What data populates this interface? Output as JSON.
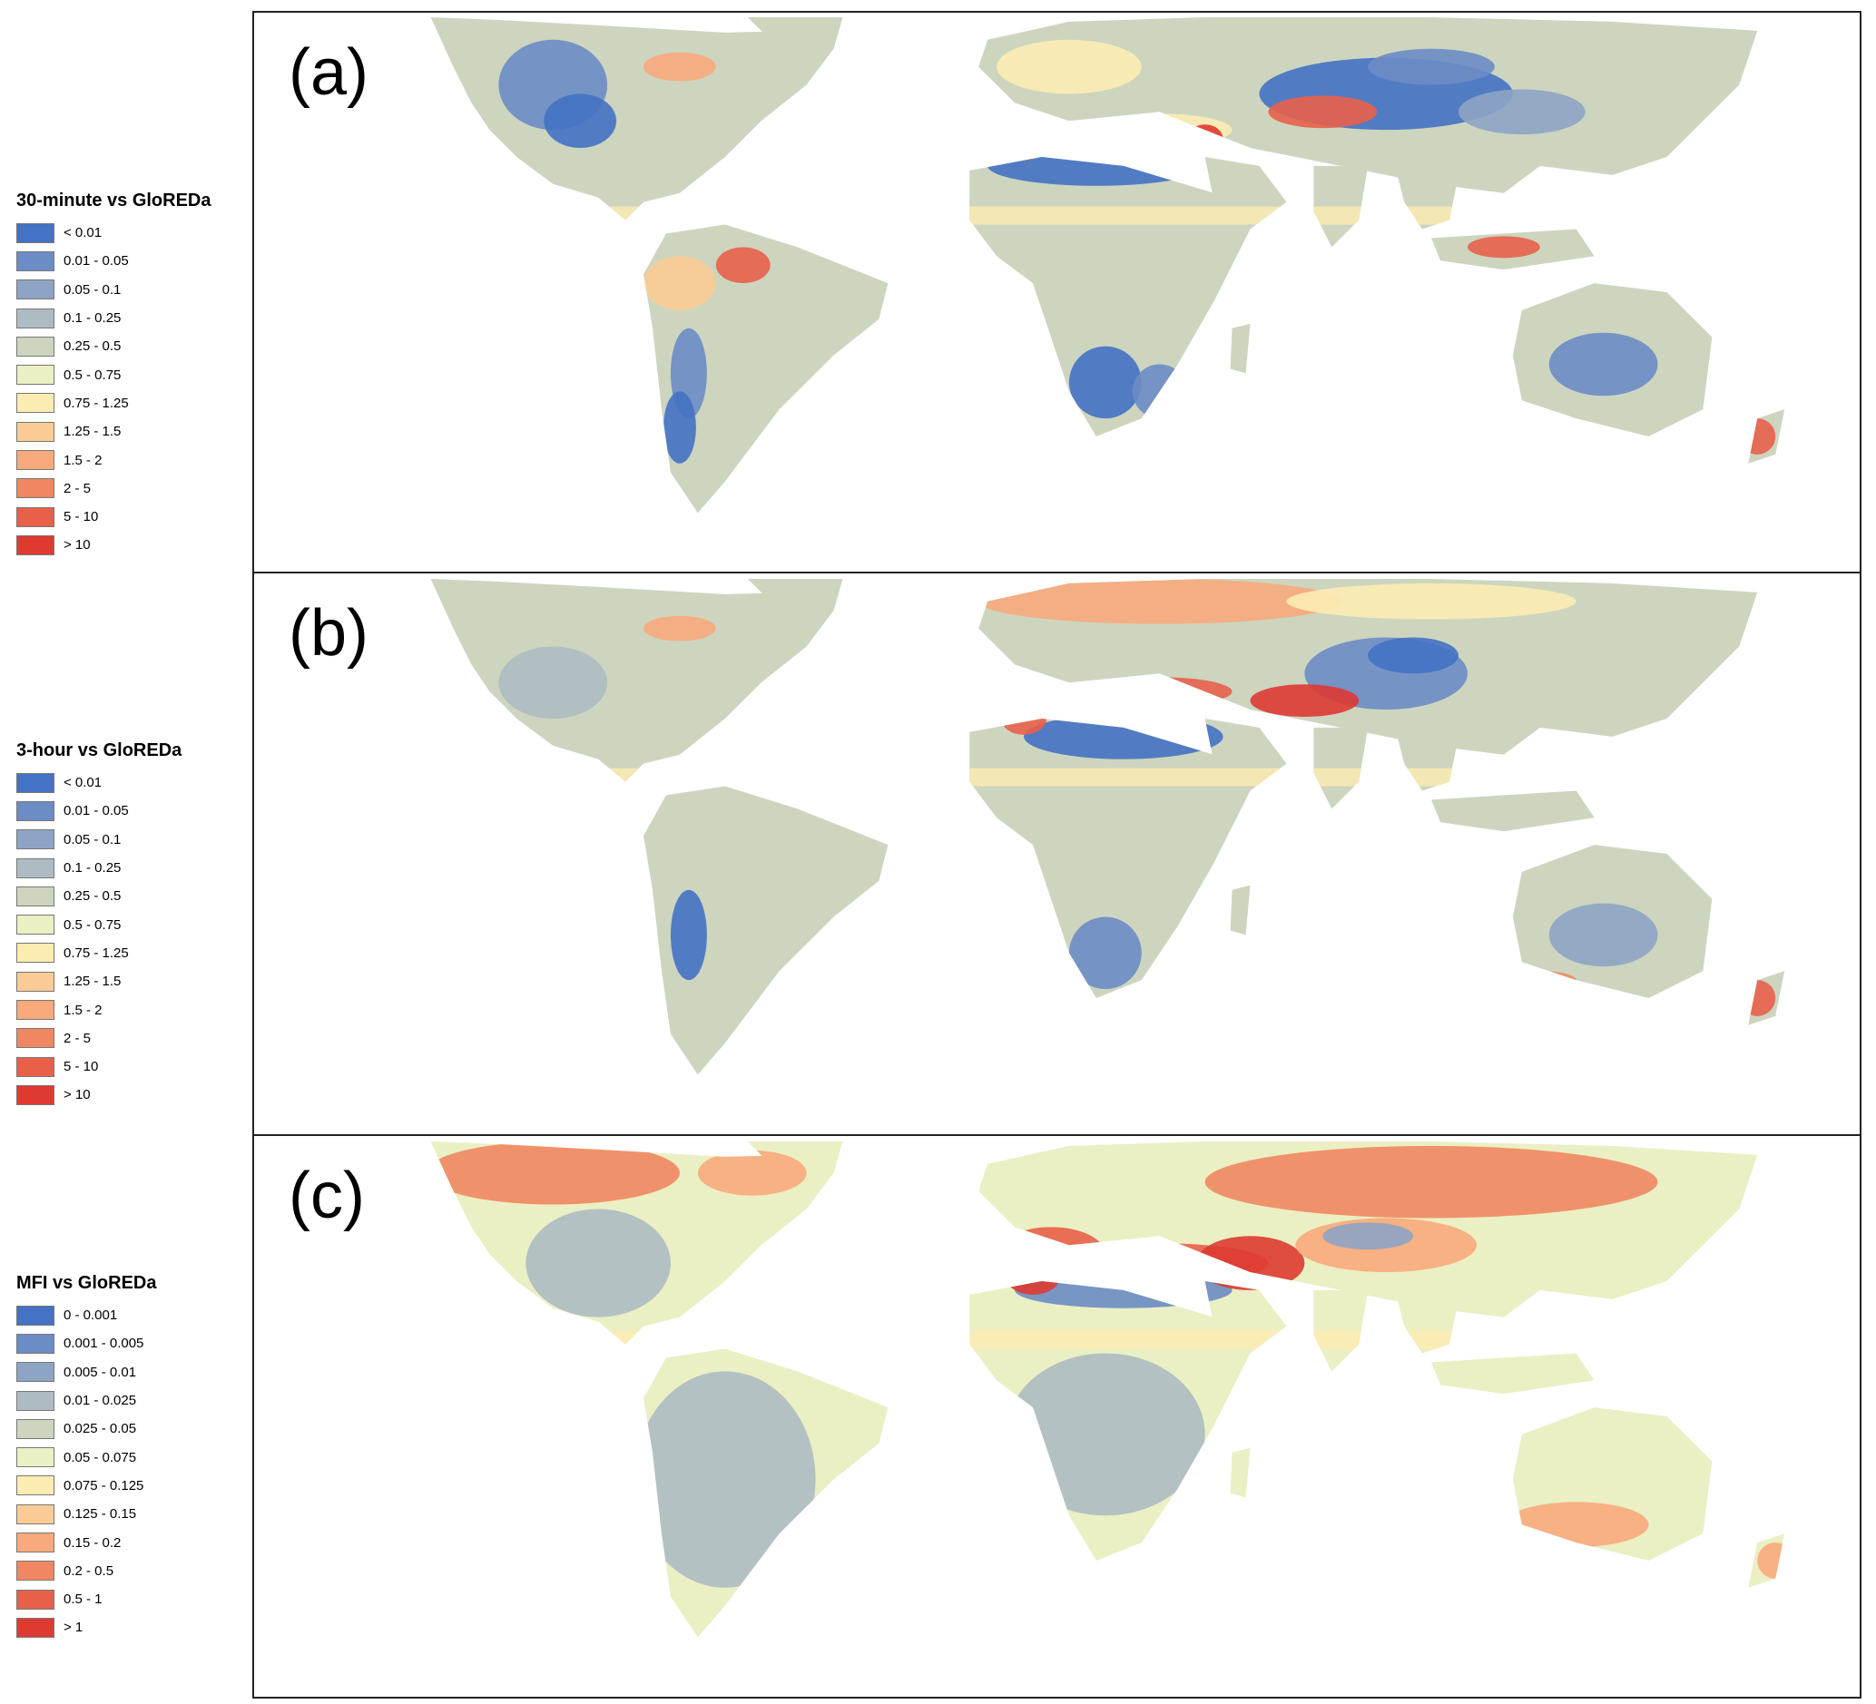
{
  "panels": [
    {
      "label": "(a)",
      "legend": {
        "title": "30-minute vs GloREDa",
        "items": [
          {
            "label": "< 0.01",
            "color": "#4472c4"
          },
          {
            "label": "0.01 - 0.05",
            "color": "#6b8cc4"
          },
          {
            "label": "0.05 - 0.1",
            "color": "#8ea4c4"
          },
          {
            "label": "0.1 - 0.25",
            "color": "#aebbc2"
          },
          {
            "label": "0.25 - 0.5",
            "color": "#cdd5bf"
          },
          {
            "label": "0.5 - 0.75",
            "color": "#ebefc4"
          },
          {
            "label": "0.75 - 1.25",
            "color": "#fcecb2"
          },
          {
            "label": "1.25 - 1.5",
            "color": "#fbcb95"
          },
          {
            "label": "1.5 - 2",
            "color": "#f8aa7c"
          },
          {
            "label": "2 - 5",
            "color": "#f08762"
          },
          {
            "label": "5 - 10",
            "color": "#e8604a"
          },
          {
            "label": "> 10",
            "color": "#de3a32"
          }
        ]
      }
    },
    {
      "label": "(b)",
      "legend": {
        "title": "3-hour vs GloREDa",
        "items": [
          {
            "label": "< 0.01",
            "color": "#4472c4"
          },
          {
            "label": "0.01 - 0.05",
            "color": "#6b8cc4"
          },
          {
            "label": "0.05 - 0.1",
            "color": "#8ea4c4"
          },
          {
            "label": "0.1 - 0.25",
            "color": "#aebbc2"
          },
          {
            "label": "0.25 - 0.5",
            "color": "#cdd5bf"
          },
          {
            "label": "0.5 - 0.75",
            "color": "#ebefc4"
          },
          {
            "label": "0.75 - 1.25",
            "color": "#fcecb2"
          },
          {
            "label": "1.25 - 1.5",
            "color": "#fbcb95"
          },
          {
            "label": "1.5 - 2",
            "color": "#f8aa7c"
          },
          {
            "label": "2 - 5",
            "color": "#f08762"
          },
          {
            "label": "5 - 10",
            "color": "#e8604a"
          },
          {
            "label": "> 10",
            "color": "#de3a32"
          }
        ]
      }
    },
    {
      "label": "(c)",
      "legend": {
        "title": "MFI vs GloREDa",
        "items": [
          {
            "label": "0 - 0.001",
            "color": "#4472c4"
          },
          {
            "label": "0.001 - 0.005",
            "color": "#6b8cc4"
          },
          {
            "label": "0.005 - 0.01",
            "color": "#8ea4c4"
          },
          {
            "label": "0.01 - 0.025",
            "color": "#aebbc2"
          },
          {
            "label": "0.025 - 0.05",
            "color": "#cdd5bf"
          },
          {
            "label": "0.05 - 0.075",
            "color": "#ebefc4"
          },
          {
            "label": "0.075 - 0.125",
            "color": "#fcecb2"
          },
          {
            "label": "0.125 - 0.15",
            "color": "#fbcb95"
          },
          {
            "label": "0.15 - 0.2",
            "color": "#f8aa7c"
          },
          {
            "label": "0.2 - 0.5",
            "color": "#f08762"
          },
          {
            "label": "0.5 - 1",
            "color": "#e8604a"
          },
          {
            "label": "> 1",
            "color": "#de3a32"
          }
        ]
      }
    }
  ]
}
